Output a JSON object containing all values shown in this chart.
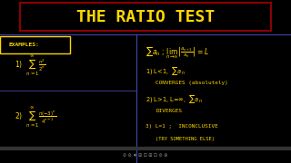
{
  "background_color": "#000000",
  "title": "THE RATIO TEST",
  "title_color": "#FFD700",
  "title_box_color": "#8B0000",
  "title_fontsize": 13,
  "examples_label": "EXAMPLES:",
  "ex1": "1)  $\\sum_{n=1}^{\\infty} \\dfrac{n^2}{2^n}$",
  "ex2": "2)  $\\sum_{n=1}^{\\infty} \\dfrac{n(-3)^n}{4^{n-1}}$",
  "formula": "$\\sum a_n$ ; $\\lim_{n \\to \\infty} \\left| \\dfrac{a_{n+1}}{a_n} \\right| = L$",
  "rule1": "1) L<1,  $\\sum a_n$",
  "rule1b": "CONVERGES (absolutely)",
  "rule2": "2) L>1, L=∞,  $\\sum a_n$",
  "rule2b": "DIVERGES",
  "rule3": "3) L=1 ;  INCONCLUSIVE",
  "rule3b": "(TRY SOMETHING ELSE)",
  "yellow": "#FFD700",
  "white": "#FFFFFF",
  "divider_color": "#4444AA",
  "box_color": "#FFD700"
}
